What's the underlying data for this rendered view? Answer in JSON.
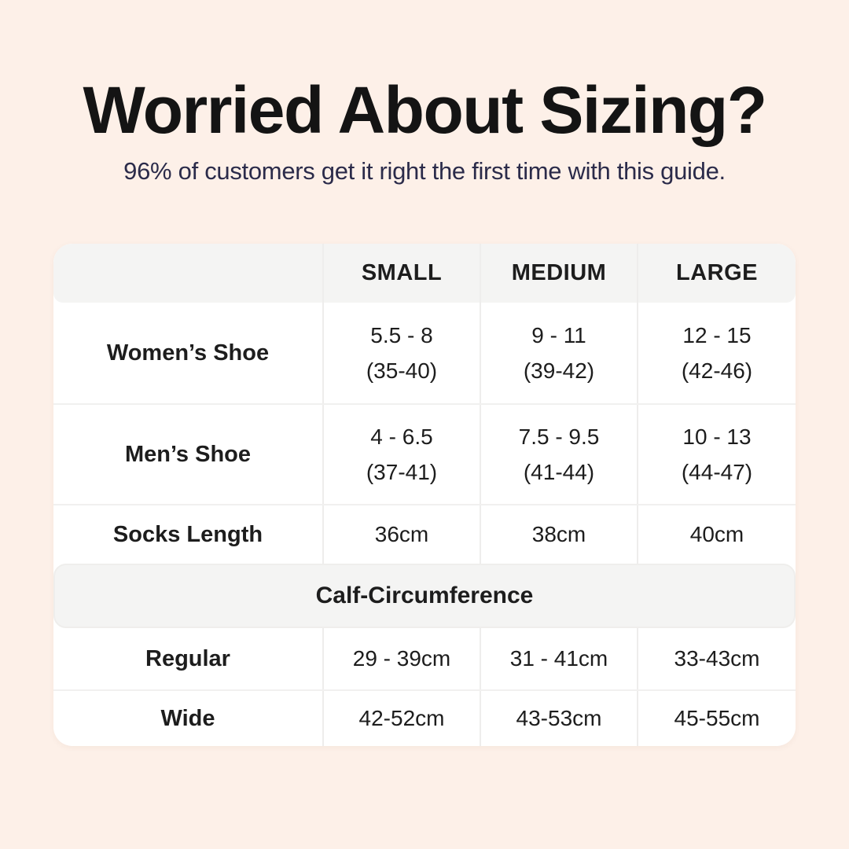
{
  "header": {
    "title": "Worried About Sizing?",
    "subtitle": "96% of customers get it right the first time with this guide."
  },
  "table": {
    "columns": [
      "SMALL",
      "MEDIUM",
      "LARGE"
    ],
    "rows": [
      {
        "label": "Women’s Shoe",
        "cells": [
          [
            "5.5 - 8",
            "(35-40)"
          ],
          [
            "9 - 11",
            "(39-42)"
          ],
          [
            "12 - 15",
            "(42-46)"
          ]
        ]
      },
      {
        "label": "Men’s Shoe",
        "cells": [
          [
            "4 - 6.5",
            "(37-41)"
          ],
          [
            "7.5 - 9.5",
            "(41-44)"
          ],
          [
            "10 - 13",
            "(44-47)"
          ]
        ]
      },
      {
        "label": "Socks Length",
        "cells": [
          [
            "36cm"
          ],
          [
            "38cm"
          ],
          [
            "40cm"
          ]
        ]
      }
    ],
    "section_header": "Calf-Circumference",
    "section_rows": [
      {
        "label": "Regular",
        "cells": [
          [
            "29 - 39cm"
          ],
          [
            "31 - 41cm"
          ],
          [
            "33-43cm"
          ]
        ]
      },
      {
        "label": "Wide",
        "cells": [
          [
            "42-52cm"
          ],
          [
            "43-53cm"
          ],
          [
            "45-55cm"
          ]
        ]
      }
    ]
  },
  "colors": {
    "page_background": "#fdf0e8",
    "card_background": "#ffffff",
    "band_background": "#f4f4f3",
    "title_text": "#141414",
    "subtitle_text": "#2b2b4a",
    "table_text": "#1d1d1d",
    "divider": "#eeedec"
  }
}
